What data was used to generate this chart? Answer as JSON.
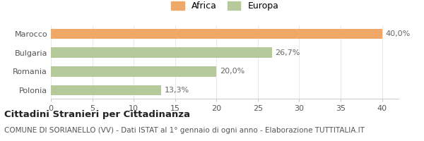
{
  "categories": [
    "Marocco",
    "Bulgaria",
    "Romania",
    "Polonia"
  ],
  "values": [
    40.0,
    26.7,
    20.0,
    13.3
  ],
  "bar_colors": [
    "#f0a868",
    "#b5c99a",
    "#b5c99a",
    "#b5c99a"
  ],
  "label_texts": [
    "40,0%",
    "26,7%",
    "20,0%",
    "13,3%"
  ],
  "legend_labels": [
    "Africa",
    "Europa"
  ],
  "legend_colors": [
    "#f0a868",
    "#b5c99a"
  ],
  "xlim": [
    0,
    42
  ],
  "xticks": [
    0,
    5,
    10,
    15,
    20,
    25,
    30,
    35,
    40
  ],
  "title": "Cittadini Stranieri per Cittadinanza",
  "subtitle": "COMUNE DI SORIANELLO (VV) - Dati ISTAT al 1° gennaio di ogni anno - Elaborazione TUTTITALIA.IT",
  "background_color": "#ffffff",
  "bar_height": 0.55,
  "title_fontsize": 9.5,
  "subtitle_fontsize": 7.5,
  "tick_fontsize": 8,
  "label_fontsize": 8
}
